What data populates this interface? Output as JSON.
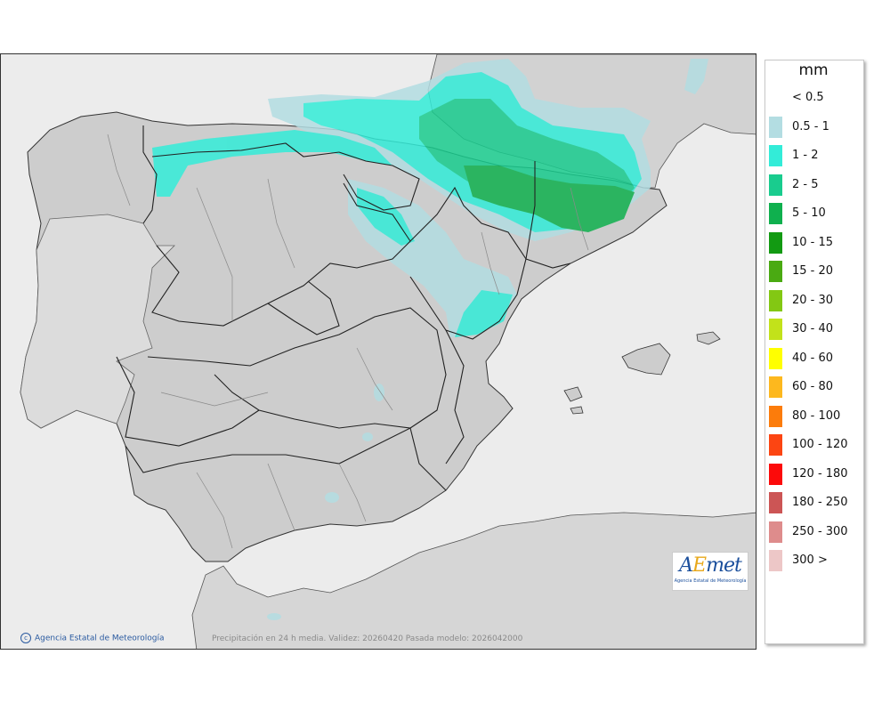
{
  "map": {
    "credit": "Agencia Estatal de Meteorología",
    "caption": "Precipitación en 24 h media. Validez: 20260420 Pasada modelo: 2026042000",
    "logo": {
      "word_a": "A",
      "word_b": "E",
      "word_c": "met",
      "subtitle": "Agencia Estatal de Meteorología"
    },
    "colors": {
      "sea": "#ececec",
      "land": "#cfcfcf",
      "border": "#222222"
    }
  },
  "legend": {
    "title": "mm",
    "items": [
      {
        "label": "< 0.5",
        "color": "#ffffff"
      },
      {
        "label": "0.5 - 1",
        "color": "#b3dde2"
      },
      {
        "label": "1 - 2",
        "color": "#33ecd8"
      },
      {
        "label": "2 - 5",
        "color": "#19cc8e"
      },
      {
        "label": "5 - 10",
        "color": "#0fb04e"
      },
      {
        "label": "10 - 15",
        "color": "#129a12"
      },
      {
        "label": "15 - 20",
        "color": "#4aaa12"
      },
      {
        "label": "20 - 30",
        "color": "#83c813"
      },
      {
        "label": "30 - 40",
        "color": "#c2e21a"
      },
      {
        "label": "40 - 60",
        "color": "#ffff00"
      },
      {
        "label": "60 - 80",
        "color": "#fdb81e"
      },
      {
        "label": "80 - 100",
        "color": "#fc7c0b"
      },
      {
        "label": "100 - 120",
        "color": "#fc4512"
      },
      {
        "label": "120 - 180",
        "color": "#fc0a0a"
      },
      {
        "label": "180 - 250",
        "color": "#cc5555"
      },
      {
        "label": "250 - 300",
        "color": "#de8c8c"
      },
      {
        "label": "300 >",
        "color": "#edc7c7"
      }
    ]
  }
}
